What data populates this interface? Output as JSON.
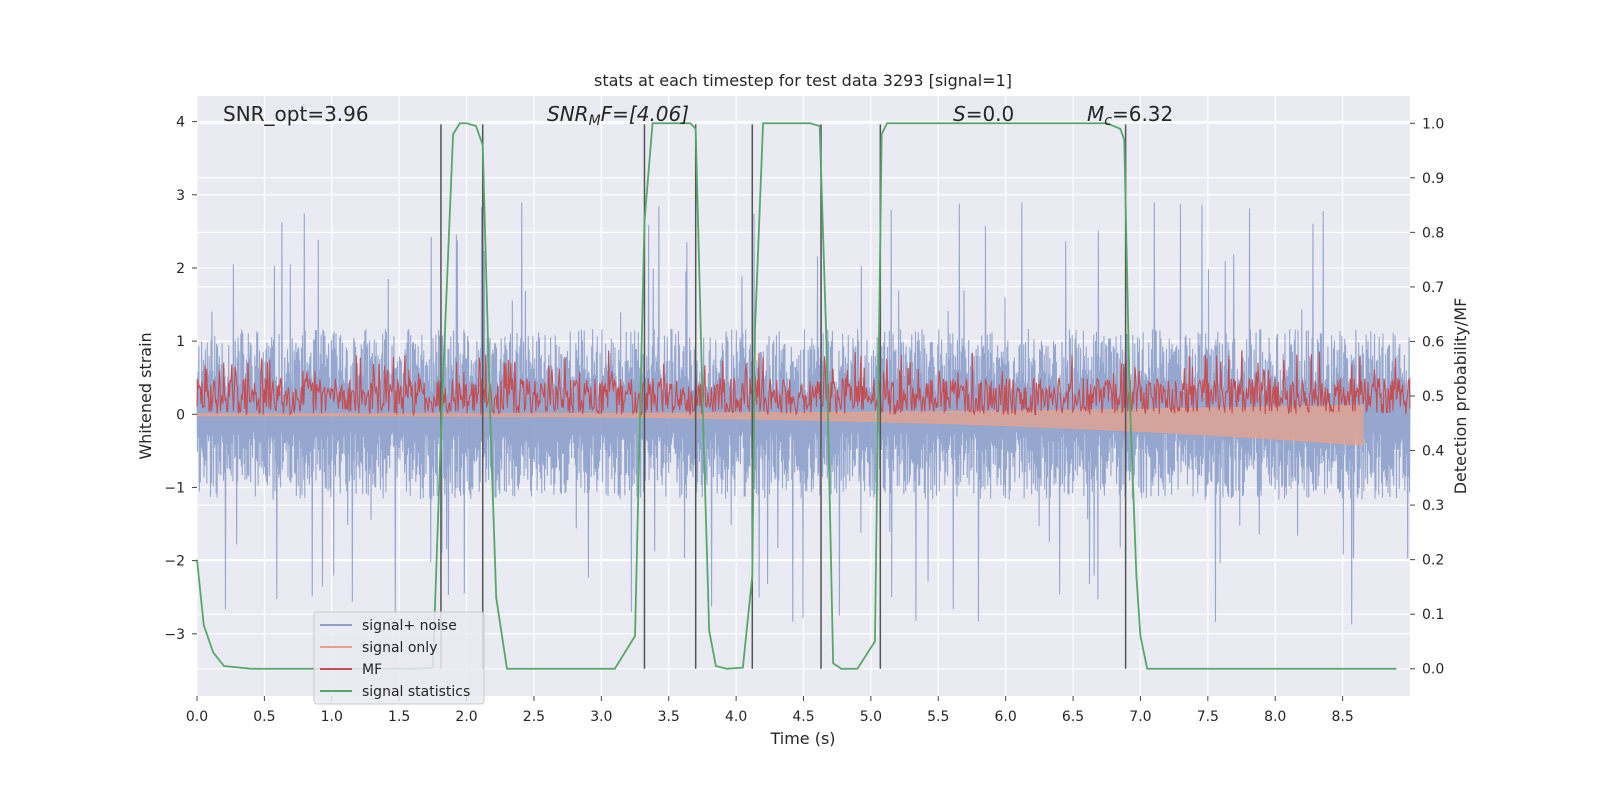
{
  "chart_data": {
    "type": "line",
    "title": "stats at each timestep for test data 3293 [signal=1]",
    "xlabel": "Time (s)",
    "ylabel": "Whitened strain",
    "y2label": "Detection probability/MF",
    "xlim": [
      0.0,
      9.0
    ],
    "ylim": [
      -3.85,
      4.35
    ],
    "y2lim": [
      -0.05,
      1.05
    ],
    "x_ticks": [
      0.0,
      0.5,
      1.0,
      1.5,
      2.0,
      2.5,
      3.0,
      3.5,
      4.0,
      4.5,
      5.0,
      5.5,
      6.0,
      6.5,
      7.0,
      7.5,
      8.0,
      8.5
    ],
    "x_tick_labels": [
      "0.0",
      "0.5",
      "1.0",
      "1.5",
      "2.0",
      "2.5",
      "3.0",
      "3.5",
      "4.0",
      "4.5",
      "5.0",
      "5.5",
      "6.0",
      "6.5",
      "7.0",
      "7.5",
      "8.0",
      "8.5"
    ],
    "y_ticks": [
      4,
      3,
      2,
      1,
      0,
      -1,
      -2,
      -3
    ],
    "y_tick_labels": [
      "4",
      "3",
      "2",
      "1",
      "0",
      "−1",
      "−2",
      "−3"
    ],
    "y2_ticks": [
      1.0,
      0.9,
      0.8,
      0.7,
      0.6,
      0.5,
      0.4,
      0.3,
      0.2,
      0.1,
      0.0
    ],
    "y2_tick_labels": [
      "1.0",
      "0.9",
      "0.8",
      "0.7",
      "0.6",
      "0.5",
      "0.4",
      "0.3",
      "0.2",
      "0.1",
      "0.0"
    ],
    "grid": true,
    "legend_position": "lower-left",
    "annotations": {
      "snr_opt": "SNR_opt=3.96",
      "snr_mf_main": "SNR",
      "snr_mf_sub": "M",
      "snr_mf_rest": "F=[4.06]",
      "s_var": "S",
      "s_rest": "=0.0",
      "mc_main": "M",
      "mc_sub": "c",
      "mc_rest": "=6.32"
    },
    "series": [
      {
        "name": "signal+ noise",
        "color": "#8da0cb",
        "axis": "left",
        "kind": "noise",
        "amplitude": 2.9,
        "seed": 11
      },
      {
        "name": "signal only",
        "color": "#e8a28a",
        "axis": "left",
        "kind": "chirp",
        "x_end": 8.65,
        "min_amplitude": 0.02,
        "max_amplitude": 0.42
      },
      {
        "name": "MF",
        "color": "#c44e52",
        "axis": "right",
        "kind": "mf",
        "baseline": 0.5,
        "amplitude": 0.07,
        "seed": 29
      },
      {
        "name": "signal statistics",
        "color": "#55a868",
        "axis": "right",
        "kind": "line",
        "x": [
          0.0,
          0.05,
          0.12,
          0.2,
          0.4,
          0.8,
          1.2,
          1.6,
          1.75,
          1.82,
          1.9,
          1.95,
          2.0,
          2.07,
          2.12,
          2.17,
          2.22,
          2.3,
          2.7,
          3.1,
          3.25,
          3.32,
          3.38,
          3.5,
          3.66,
          3.7,
          3.75,
          3.8,
          3.85,
          3.93,
          4.05,
          4.12,
          4.14,
          4.2,
          4.35,
          4.55,
          4.62,
          4.67,
          4.72,
          4.78,
          4.9,
          5.03,
          5.08,
          5.12,
          5.3,
          5.8,
          6.3,
          6.75,
          6.85,
          6.88,
          6.92,
          6.97,
          7.0,
          7.05,
          7.2,
          8.0,
          8.9
        ],
        "y": [
          0.2,
          0.08,
          0.03,
          0.005,
          0.0,
          0.0,
          0.0,
          0.0,
          0.002,
          0.5,
          0.98,
          1.0,
          1.0,
          0.995,
          0.96,
          0.5,
          0.13,
          0.0,
          0.0,
          0.0,
          0.06,
          0.82,
          1.0,
          1.0,
          1.0,
          0.99,
          0.5,
          0.07,
          0.005,
          0.0,
          0.002,
          0.17,
          0.62,
          1.0,
          1.0,
          1.0,
          0.995,
          0.6,
          0.01,
          0.0,
          0.0,
          0.05,
          0.98,
          1.0,
          1.0,
          1.0,
          1.0,
          1.0,
          0.99,
          0.97,
          0.5,
          0.17,
          0.06,
          0.0,
          0.0,
          0.0,
          0.0
        ]
      }
    ],
    "vertical_lines": [
      1.81,
      2.12,
      3.32,
      3.7,
      4.12,
      4.63,
      5.07,
      6.89
    ],
    "vertical_line_top": 0.998,
    "vertical_line_bottom": 0.0
  }
}
